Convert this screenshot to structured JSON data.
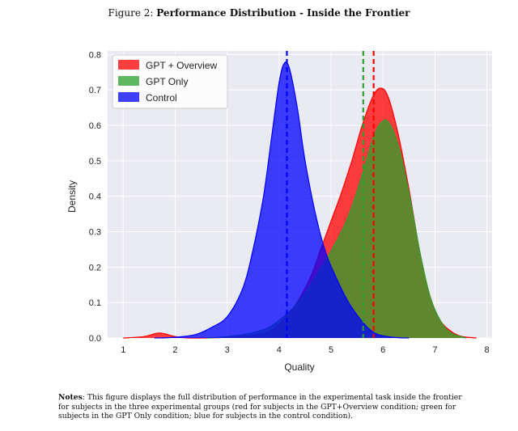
{
  "figure": {
    "prefix": "Figure 2: ",
    "title": "Performance Distribution - Inside the Frontier"
  },
  "notes": {
    "label": "Notes",
    "text": ": This figure displays the full distribution of performance in the experimental task inside the frontier for subjects in the three experimental groups (red for subjects in the GPT+Overview condition; green for subjects in the GPT Only condition; blue for subjects in the control condition)."
  },
  "chart_data": {
    "type": "area",
    "xlabel": "Quality",
    "ylabel": "Density",
    "xlim": [
      0.7,
      8.1
    ],
    "ylim": [
      0,
      0.81
    ],
    "xticks": [
      1,
      2,
      3,
      4,
      5,
      6,
      7,
      8
    ],
    "yticks": [
      "0.0",
      "0.1",
      "0.2",
      "0.3",
      "0.4",
      "0.5",
      "0.6",
      "0.7",
      "0.8"
    ],
    "grid": true,
    "legend_position": "top-left",
    "series": [
      {
        "name": "GPT + Overview",
        "color": "#ff0000",
        "mean": 5.82,
        "points": [
          [
            1.0,
            0.0
          ],
          [
            1.4,
            0.004
          ],
          [
            1.7,
            0.014
          ],
          [
            2.0,
            0.004
          ],
          [
            2.3,
            0.0
          ],
          [
            3.0,
            0.002
          ],
          [
            3.5,
            0.008
          ],
          [
            3.8,
            0.018
          ],
          [
            4.0,
            0.04
          ],
          [
            4.3,
            0.09
          ],
          [
            4.6,
            0.17
          ],
          [
            4.8,
            0.25
          ],
          [
            5.0,
            0.33
          ],
          [
            5.2,
            0.41
          ],
          [
            5.4,
            0.5
          ],
          [
            5.6,
            0.6
          ],
          [
            5.8,
            0.68
          ],
          [
            5.95,
            0.705
          ],
          [
            6.1,
            0.68
          ],
          [
            6.3,
            0.57
          ],
          [
            6.5,
            0.42
          ],
          [
            6.7,
            0.25
          ],
          [
            6.9,
            0.12
          ],
          [
            7.1,
            0.05
          ],
          [
            7.3,
            0.02
          ],
          [
            7.5,
            0.005
          ],
          [
            7.8,
            0.0
          ]
        ]
      },
      {
        "name": "GPT Only",
        "color": "#2ca02c",
        "mean": 5.62,
        "points": [
          [
            2.6,
            0.0
          ],
          [
            3.0,
            0.004
          ],
          [
            3.5,
            0.015
          ],
          [
            3.8,
            0.03
          ],
          [
            4.0,
            0.05
          ],
          [
            4.3,
            0.09
          ],
          [
            4.6,
            0.15
          ],
          [
            4.9,
            0.22
          ],
          [
            5.2,
            0.3
          ],
          [
            5.4,
            0.37
          ],
          [
            5.6,
            0.46
          ],
          [
            5.8,
            0.56
          ],
          [
            5.95,
            0.605
          ],
          [
            6.1,
            0.61
          ],
          [
            6.3,
            0.54
          ],
          [
            6.5,
            0.41
          ],
          [
            6.7,
            0.25
          ],
          [
            6.9,
            0.12
          ],
          [
            7.1,
            0.05
          ],
          [
            7.3,
            0.015
          ],
          [
            7.6,
            0.0
          ]
        ]
      },
      {
        "name": "Control",
        "color": "#0000ff",
        "mean": 4.15,
        "points": [
          [
            1.6,
            0.0
          ],
          [
            2.0,
            0.002
          ],
          [
            2.4,
            0.01
          ],
          [
            2.7,
            0.03
          ],
          [
            3.0,
            0.06
          ],
          [
            3.3,
            0.14
          ],
          [
            3.5,
            0.25
          ],
          [
            3.7,
            0.4
          ],
          [
            3.85,
            0.56
          ],
          [
            4.0,
            0.72
          ],
          [
            4.1,
            0.775
          ],
          [
            4.2,
            0.76
          ],
          [
            4.35,
            0.65
          ],
          [
            4.5,
            0.5
          ],
          [
            4.7,
            0.35
          ],
          [
            4.9,
            0.24
          ],
          [
            5.1,
            0.17
          ],
          [
            5.3,
            0.11
          ],
          [
            5.5,
            0.065
          ],
          [
            5.7,
            0.03
          ],
          [
            5.9,
            0.01
          ],
          [
            6.2,
            0.002
          ],
          [
            6.5,
            0.0
          ]
        ]
      }
    ]
  }
}
